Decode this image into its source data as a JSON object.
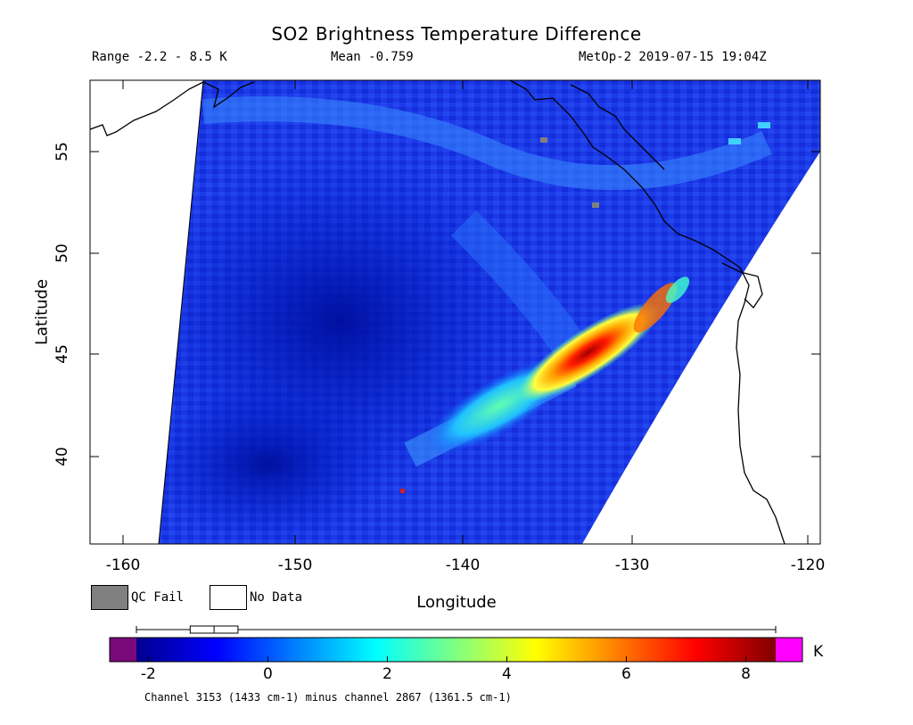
{
  "header": {
    "title": "SO2 Brightness Temperature Difference",
    "range": "Range -2.2 - 8.5 K",
    "mean": "Mean -0.759",
    "satellite_time": "MetOp-2 2019-07-15 19:04Z"
  },
  "axes": {
    "xlabel": "Longitude",
    "ylabel": "Latitude",
    "x_ticks": [
      "-160",
      "-150",
      "-140",
      "-130",
      "-120"
    ],
    "y_ticks": [
      "55",
      "50",
      "45",
      "40"
    ],
    "x_range": [
      -162,
      -119.5
    ],
    "y_range": [
      35.2,
      58.2
    ]
  },
  "legend": {
    "qc_fail": "QC Fail",
    "no_data": "No Data",
    "qc_fail_color": "#808080",
    "no_data_color": "#ffffff"
  },
  "colorbar": {
    "ticks": [
      "-2",
      "0",
      "2",
      "4",
      "6",
      "8"
    ],
    "unit": "K",
    "range": [
      -2.2,
      8.5
    ],
    "under_color": "#7a0a7a",
    "over_color": "#ff00ff",
    "stops": [
      "#00008f",
      "#0000ff",
      "#0080ff",
      "#00ffff",
      "#80ff80",
      "#ffff00",
      "#ff8000",
      "#ff0000",
      "#800000"
    ],
    "boxplot": {
      "min": -2.2,
      "q1": -1.3,
      "median": -0.9,
      "q3": -0.5,
      "max": 8.5
    }
  },
  "caption": "Channel 3153 (1433 cm-1) minus channel 2867 (1361.5 cm-1)",
  "map_data": {
    "background_value": -0.76,
    "plume_peak_value": 8.5,
    "plume_peak_location": {
      "lon": -133,
      "lat": 44.5
    },
    "plume_axis": [
      {
        "lon": -138,
        "lat": 42.3
      },
      {
        "lon": -135,
        "lat": 43.8
      },
      {
        "lon": -133,
        "lat": 44.5
      },
      {
        "lon": -131,
        "lat": 45.5
      },
      {
        "lon": -128,
        "lat": 47.5
      }
    ]
  }
}
